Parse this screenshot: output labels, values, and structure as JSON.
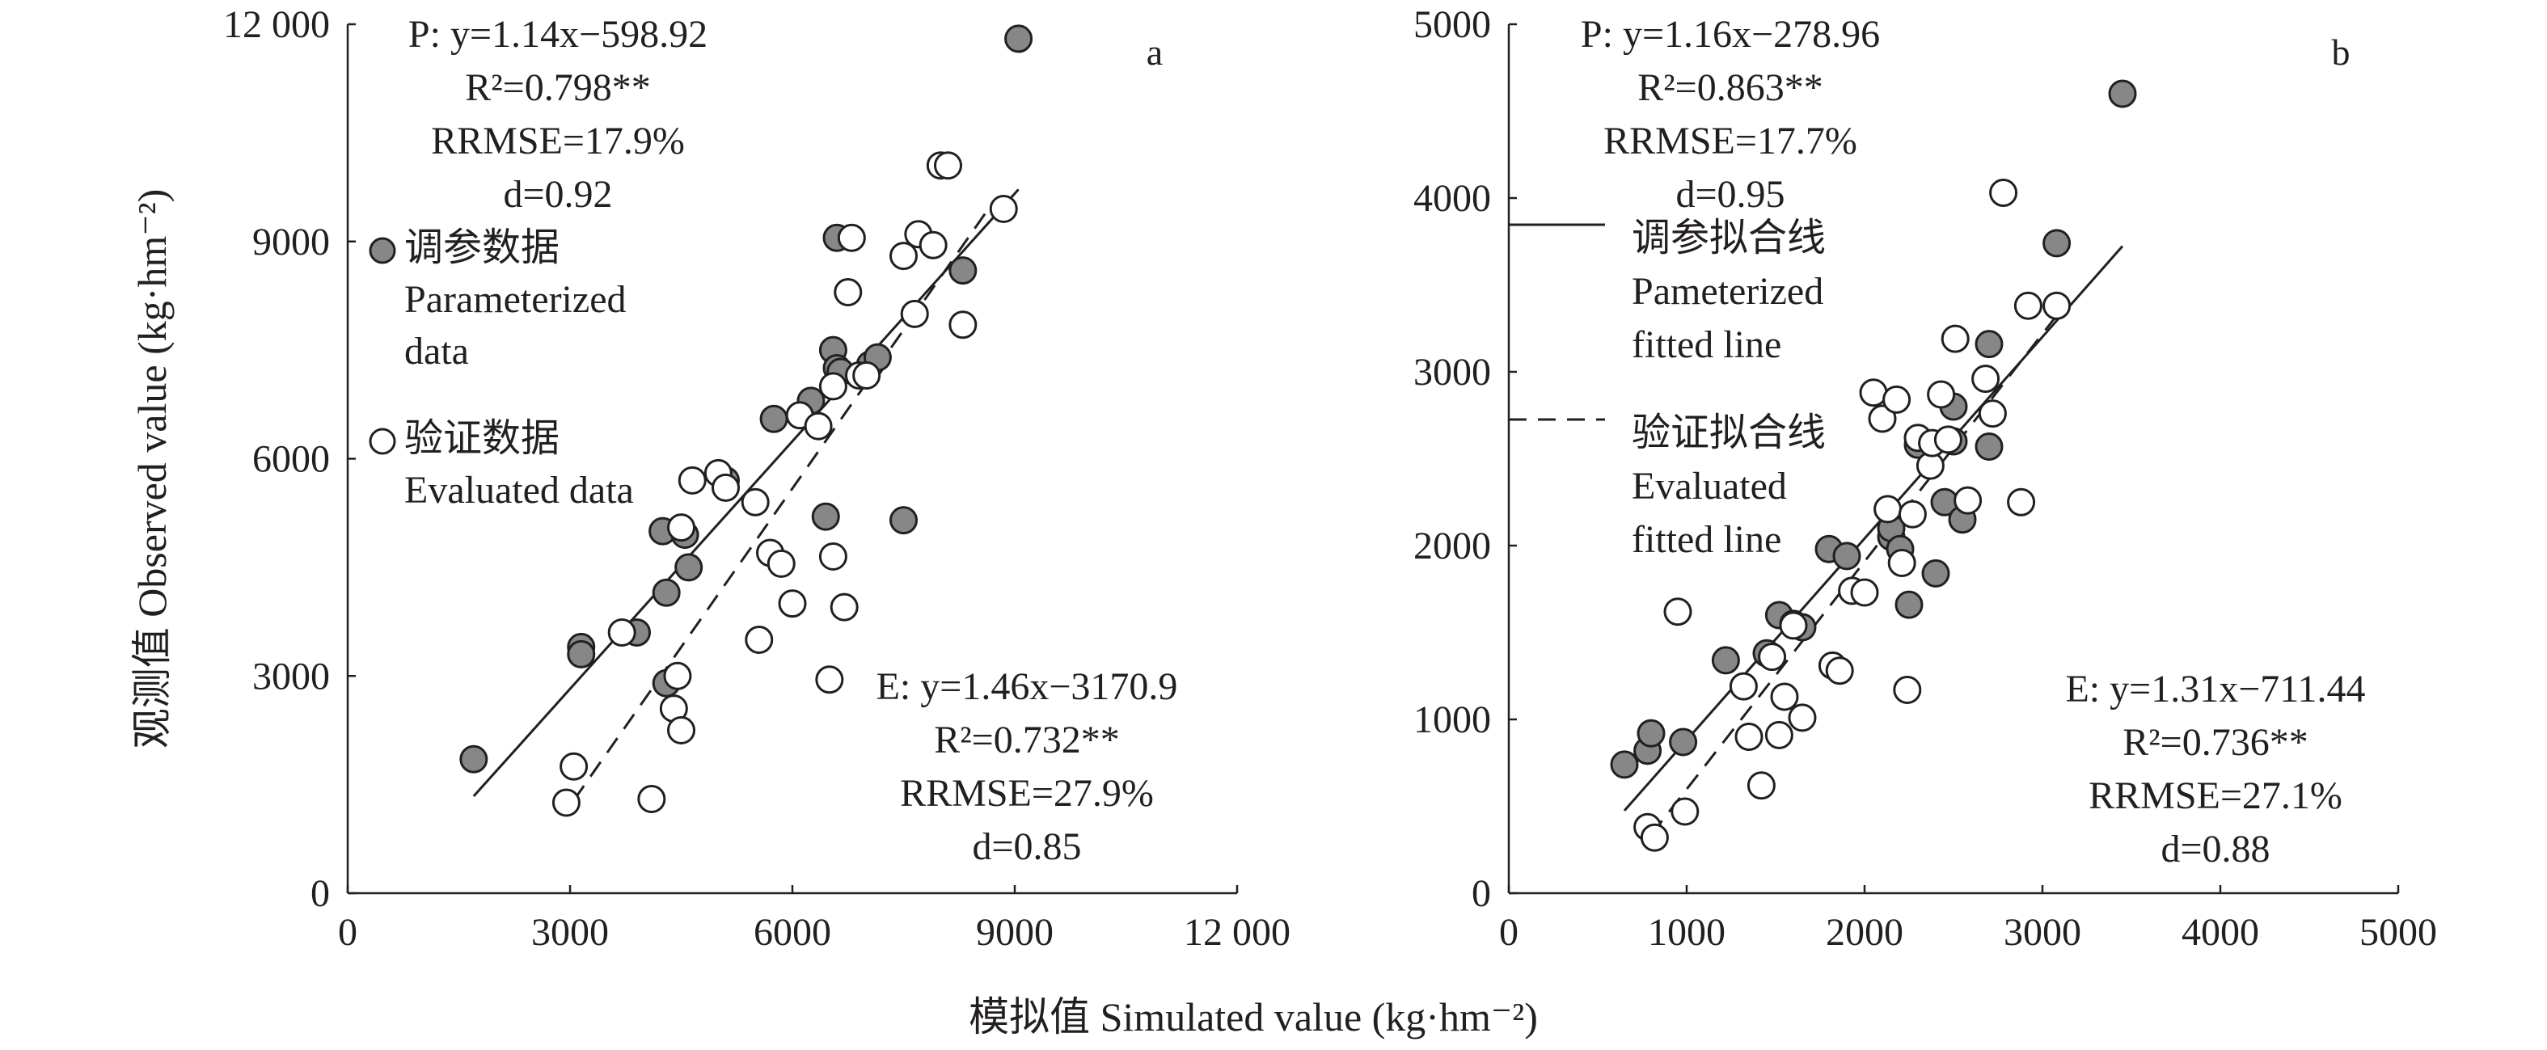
{
  "figure": {
    "xlabel": "模拟值 Simulated value (kg·hm⁻²)",
    "ylabel": "观测值 Observed value (kg·hm⁻²)"
  },
  "colors": {
    "parameterized_fill": "#878787",
    "evaluated_fill": "#ffffff",
    "stroke": "#231f20"
  },
  "chart_data": [
    {
      "type": "scatter",
      "panel_label": "a",
      "xlim": [
        0,
        12000
      ],
      "ylim": [
        0,
        12000
      ],
      "x_ticks": [
        "0",
        "3000",
        "6000",
        "9000",
        "12 000"
      ],
      "y_ticks": [
        "0",
        "3000",
        "6000",
        "9000",
        "12 000"
      ],
      "legend": {
        "parameterized": [
          "调参数据",
          "Parameterized",
          "data"
        ],
        "evaluated": [
          "验证数据",
          "Evaluated data"
        ]
      },
      "stats_p": [
        "P: y=1.14x−598.92",
        "R²=0.798**",
        "RRMSE=17.9%",
        "d=0.92"
      ],
      "stats_e": [
        "E: y=1.46x−3170.9",
        "R²=0.732**",
        "RRMSE=27.9%",
        "d=0.85"
      ],
      "fit_p": {
        "slope": 1.14,
        "intercept": -598.92,
        "x_range": [
          1700,
          9050
        ],
        "style": "solid"
      },
      "fit_e": {
        "slope": 1.46,
        "intercept": -3170.9,
        "x_range": [
          3050,
          8700
        ],
        "style": "dashed"
      },
      "series": [
        {
          "name": "调参数据 Parameterized data",
          "style": "filled",
          "x": [
            1700,
            3150,
            3150,
            3900,
            4250,
            4300,
            4300,
            4550,
            4600,
            5100,
            5750,
            6250,
            6450,
            6550,
            6600,
            6600,
            6650,
            7050,
            7150,
            7500,
            8300,
            9050
          ],
          "y": [
            1850,
            3400,
            3300,
            3600,
            5000,
            4150,
            2900,
            4950,
            4500,
            5700,
            6550,
            6800,
            5200,
            7500,
            7250,
            9050,
            7200,
            7300,
            7400,
            5150,
            8600,
            11800
          ]
        },
        {
          "name": "验证数据 Evaluated data",
          "style": "open",
          "x": [
            2950,
            3050,
            3700,
            4100,
            4400,
            4450,
            4500,
            4500,
            4650,
            5000,
            5100,
            5500,
            5550,
            5700,
            5850,
            6000,
            6100,
            6350,
            6500,
            6550,
            6550,
            6700,
            6750,
            6800,
            6900,
            7000,
            7500,
            7650,
            7700,
            7900,
            8000,
            8100,
            8300,
            8850
          ],
          "y": [
            1250,
            1750,
            3600,
            1300,
            2550,
            3000,
            5050,
            2250,
            5700,
            5800,
            5600,
            5400,
            3500,
            4700,
            4550,
            4000,
            6600,
            6450,
            2950,
            4650,
            7000,
            3950,
            8300,
            9050,
            7150,
            7150,
            8800,
            8000,
            9100,
            8950,
            10050,
            10050,
            7850,
            9450
          ]
        }
      ]
    },
    {
      "type": "scatter",
      "panel_label": "b",
      "xlim": [
        0,
        5000
      ],
      "ylim": [
        0,
        5000
      ],
      "x_ticks": [
        "0",
        "1000",
        "2000",
        "3000",
        "4000",
        "5000"
      ],
      "y_ticks": [
        "0",
        "1000",
        "2000",
        "3000",
        "4000",
        "5000"
      ],
      "legend": {
        "parameterized_line": [
          "调参拟合线",
          "Pameterized",
          "fitted line"
        ],
        "evaluated_line": [
          "验证拟合线",
          "Evaluated",
          "fitted line"
        ]
      },
      "stats_p": [
        "P: y=1.16x−278.96",
        "R²=0.863**",
        "RRMSE=17.7%",
        "d=0.95"
      ],
      "stats_e": [
        "E: y=1.31x−711.44",
        "R²=0.736**",
        "RRMSE=27.1%",
        "d=0.88"
      ],
      "fit_p": {
        "slope": 1.16,
        "intercept": -278.96,
        "x_range": [
          650,
          3450
        ],
        "style": "solid"
      },
      "fit_e": {
        "slope": 1.31,
        "intercept": -711.44,
        "x_range": [
          800,
          3100
        ],
        "style": "dashed"
      },
      "series": [
        {
          "name": "调参数据 Parameterized data",
          "style": "filled",
          "x": [
            650,
            780,
            800,
            980,
            1220,
            1450,
            1520,
            1600,
            1650,
            1800,
            1900,
            2150,
            2150,
            2200,
            2250,
            2300,
            2400,
            2450,
            2500,
            2500,
            2550,
            2700,
            2700,
            3080,
            3450
          ],
          "y": [
            740,
            820,
            920,
            870,
            1340,
            1380,
            1600,
            1550,
            1530,
            1980,
            1940,
            2050,
            2100,
            1980,
            1660,
            2580,
            1840,
            2250,
            2600,
            2800,
            2150,
            2570,
            3160,
            3740,
            4600
          ]
        },
        {
          "name": "验证数据 Evaluated data",
          "style": "open",
          "x": [
            780,
            820,
            950,
            990,
            1320,
            1350,
            1420,
            1480,
            1520,
            1550,
            1600,
            1650,
            1820,
            1860,
            1930,
            2000,
            2050,
            2100,
            2130,
            2180,
            2210,
            2240,
            2270,
            2300,
            2370,
            2380,
            2430,
            2470,
            2510,
            2580,
            2680,
            2720,
            2780,
            2880,
            2920,
            3080
          ],
          "y": [
            380,
            320,
            1620,
            470,
            1190,
            900,
            620,
            1360,
            910,
            1130,
            1540,
            1010,
            1310,
            1280,
            1740,
            1730,
            2880,
            2730,
            2210,
            2840,
            1900,
            1170,
            2180,
            2620,
            2460,
            2590,
            2870,
            2610,
            3190,
            2260,
            2960,
            2760,
            4030,
            2250,
            3380,
            3380
          ]
        }
      ]
    }
  ]
}
